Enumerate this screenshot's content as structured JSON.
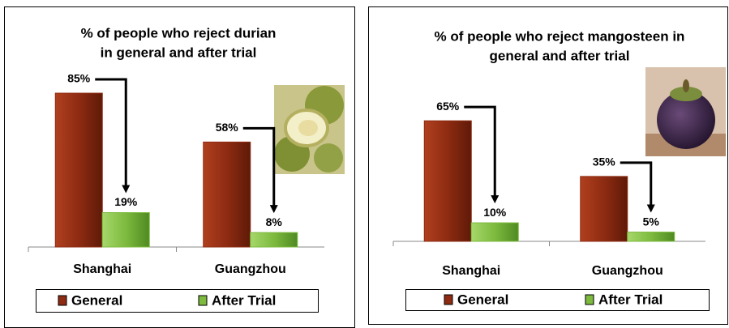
{
  "chart_data": [
    {
      "type": "bar",
      "title": [
        "% of people who reject durian",
        "in general and after trial"
      ],
      "categories": [
        "Shanghai",
        "Guangzhou"
      ],
      "series": [
        {
          "name": "General",
          "color": "#8e2b12",
          "values": [
            85,
            58
          ],
          "value_labels": [
            "85%",
            "58%"
          ]
        },
        {
          "name": "After Trial",
          "color": "#7dba3e",
          "values": [
            19,
            8
          ],
          "value_labels": [
            "19%",
            "8%"
          ]
        }
      ]
    },
    {
      "type": "bar",
      "title": [
        "% of people who reject mangosteen in",
        "general and after trial"
      ],
      "categories": [
        "Shanghai",
        "Guangzhou"
      ],
      "series": [
        {
          "name": "General",
          "color": "#8e2b12",
          "values": [
            65,
            35
          ],
          "value_labels": [
            "65%",
            "35%"
          ]
        },
        {
          "name": "After Trial",
          "color": "#7dba3e",
          "values": [
            10,
            5
          ],
          "value_labels": [
            "10%",
            "5%"
          ]
        }
      ]
    }
  ]
}
